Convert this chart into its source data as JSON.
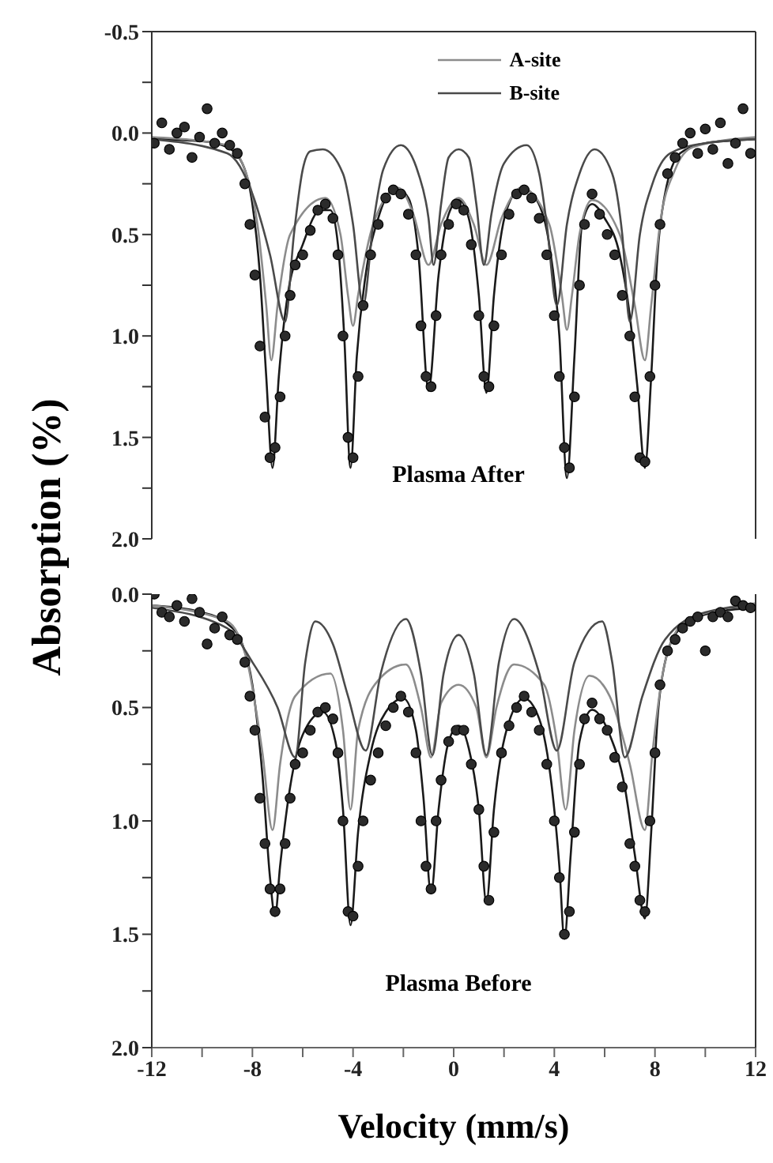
{
  "chart_data": [
    {
      "type": "scatter",
      "ylabel": "Absorption (%)",
      "annotations": [
        "Plasma After"
      ],
      "xlim": [
        -12,
        12
      ],
      "ylim": [
        2.0,
        -0.5
      ],
      "yticks": [
        {
          "value": -0.5,
          "label": "-0.5"
        },
        {
          "value": -0.25,
          "label": null
        },
        {
          "value": 0,
          "label": "0.0"
        },
        {
          "value": 0.25,
          "label": null
        },
        {
          "value": 0.5,
          "label": "0.5"
        },
        {
          "value": 0.75,
          "label": null
        },
        {
          "value": 1,
          "label": "1.0"
        },
        {
          "value": 1.25,
          "label": null
        },
        {
          "value": 1.5,
          "label": "1.5"
        },
        {
          "value": 1.75,
          "label": null
        },
        {
          "value": 2,
          "label": "2.0"
        }
      ],
      "tick_labels": "y",
      "legend": "top",
      "series": [
        {
          "type": "scatter",
          "marker": "circle",
          "color": "#2b2b2b",
          "x": [
            -11.9,
            -11.6,
            -11.3,
            -11.0,
            -10.7,
            -10.4,
            -10.1,
            -9.8,
            -9.5,
            -9.2,
            -8.9,
            -8.6,
            -8.3,
            -8.1,
            -7.9,
            -7.7,
            -7.5,
            -7.3,
            -7.1,
            -6.9,
            -6.7,
            -6.5,
            -6.3,
            -6.0,
            -5.7,
            -5.4,
            -5.1,
            -4.8,
            -4.6,
            -4.4,
            -4.2,
            -4.0,
            -3.8,
            -3.6,
            -3.3,
            -3.0,
            -2.7,
            -2.4,
            -2.1,
            -1.8,
            -1.5,
            -1.3,
            -1.1,
            -0.9,
            -0.7,
            -0.5,
            -0.2,
            0.1,
            0.4,
            0.7,
            1.0,
            1.2,
            1.4,
            1.6,
            1.9,
            2.2,
            2.5,
            2.8,
            3.1,
            3.4,
            3.7,
            4.0,
            4.2,
            4.4,
            4.6,
            4.8,
            5.0,
            5.2,
            5.5,
            5.8,
            6.1,
            6.4,
            6.7,
            7.0,
            7.2,
            7.4,
            7.6,
            7.8,
            8.0,
            8.2,
            8.5,
            8.8,
            9.1,
            9.4,
            9.7,
            10.0,
            10.3,
            10.6,
            10.9,
            11.2,
            11.5,
            11.8
          ],
          "values": [
            0.05,
            -0.05,
            0.08,
            0.0,
            -0.03,
            0.12,
            0.02,
            -0.12,
            0.05,
            0.0,
            0.06,
            0.1,
            0.25,
            0.45,
            0.7,
            1.05,
            1.4,
            1.6,
            1.55,
            1.3,
            1.0,
            0.8,
            0.65,
            0.6,
            0.48,
            0.38,
            0.35,
            0.42,
            0.6,
            1.0,
            1.5,
            1.6,
            1.2,
            0.85,
            0.6,
            0.45,
            0.32,
            0.28,
            0.3,
            0.4,
            0.6,
            0.95,
            1.2,
            1.25,
            0.9,
            0.6,
            0.45,
            0.35,
            0.38,
            0.55,
            0.9,
            1.2,
            1.25,
            0.95,
            0.6,
            0.4,
            0.3,
            0.28,
            0.32,
            0.42,
            0.6,
            0.9,
            1.2,
            1.55,
            1.65,
            1.3,
            0.75,
            0.45,
            0.3,
            0.4,
            0.5,
            0.6,
            0.8,
            1.0,
            1.3,
            1.6,
            1.62,
            1.2,
            0.75,
            0.45,
            0.2,
            0.12,
            0.05,
            0.0,
            0.1,
            -0.02,
            0.08,
            -0.05,
            0.15,
            0.05,
            -0.12,
            0.1
          ]
        },
        {
          "type": "line",
          "color": "#1a1a1a",
          "x": [
            -12,
            -10,
            -9,
            -8.4,
            -8.0,
            -7.7,
            -7.45,
            -7.2,
            -6.95,
            -6.6,
            -6.0,
            -5.3,
            -4.9,
            -4.6,
            -4.35,
            -4.1,
            -3.85,
            -3.5,
            -3.0,
            -2.3,
            -1.8,
            -1.4,
            -1.0,
            -0.6,
            -0.2,
            0.2,
            0.6,
            1.0,
            1.3,
            1.6,
            2.1,
            2.7,
            3.3,
            3.8,
            4.2,
            4.5,
            4.8,
            5.1,
            5.5,
            6.0,
            6.6,
            7.0,
            7.3,
            7.6,
            7.85,
            8.1,
            8.4,
            9.0,
            10,
            12
          ],
          "values": [
            0.03,
            0.04,
            0.07,
            0.15,
            0.35,
            0.7,
            1.2,
            1.65,
            1.2,
            0.8,
            0.55,
            0.38,
            0.38,
            0.55,
            1.0,
            1.65,
            1.1,
            0.7,
            0.42,
            0.27,
            0.32,
            0.6,
            1.27,
            0.7,
            0.4,
            0.33,
            0.42,
            0.8,
            1.28,
            0.8,
            0.38,
            0.27,
            0.33,
            0.55,
            1.0,
            1.7,
            1.1,
            0.45,
            0.35,
            0.42,
            0.6,
            0.9,
            1.25,
            1.65,
            1.2,
            0.6,
            0.3,
            0.1,
            0.05,
            0.03
          ]
        },
        {
          "type": "line",
          "name": "A-site",
          "color": "#8c8c8c",
          "x": [
            -12,
            -9,
            -8.3,
            -7.8,
            -7.45,
            -7.25,
            -7.0,
            -6.5,
            -5.1,
            -4.5,
            -4.2,
            -4.0,
            -3.8,
            -3.2,
            -2.2,
            -1.6,
            -1.0,
            -0.5,
            0.2,
            0.8,
            1.3,
            1.9,
            2.7,
            3.8,
            4.3,
            4.5,
            4.7,
            5.0,
            5.5,
            6.6,
            7.2,
            7.6,
            7.85,
            8.2,
            8.8,
            9.5,
            12
          ],
          "values": [
            0.02,
            0.06,
            0.18,
            0.45,
            0.85,
            1.12,
            0.85,
            0.5,
            0.32,
            0.5,
            0.8,
            0.95,
            0.8,
            0.45,
            0.27,
            0.4,
            0.65,
            0.45,
            0.32,
            0.45,
            0.65,
            0.42,
            0.27,
            0.45,
            0.8,
            0.97,
            0.8,
            0.5,
            0.33,
            0.5,
            0.85,
            1.12,
            0.85,
            0.45,
            0.18,
            0.07,
            0.02
          ]
        },
        {
          "type": "line",
          "name": "B-site",
          "color": "#4a4a4a",
          "x": [
            -12,
            -9,
            -8.0,
            -7.3,
            -6.7,
            -6.35,
            -6.0,
            -5.7,
            -5.2,
            -4.4,
            -4.0,
            -3.6,
            -3.2,
            -2.8,
            -2.1,
            -1.4,
            -1.0,
            -0.8,
            -0.5,
            -0.2,
            0.2,
            0.6,
            0.9,
            1.2,
            1.5,
            2.0,
            2.9,
            3.4,
            3.7,
            4.1,
            4.5,
            5.0,
            5.6,
            6.3,
            6.7,
            7.0,
            7.4,
            7.9,
            8.6,
            10,
            12
          ],
          "values": [
            0.03,
            0.1,
            0.3,
            0.6,
            0.93,
            0.5,
            0.18,
            0.09,
            0.08,
            0.2,
            0.45,
            0.85,
            0.45,
            0.18,
            0.06,
            0.2,
            0.42,
            0.65,
            0.35,
            0.12,
            0.08,
            0.12,
            0.35,
            0.65,
            0.4,
            0.15,
            0.06,
            0.2,
            0.45,
            0.85,
            0.45,
            0.2,
            0.08,
            0.2,
            0.5,
            0.93,
            0.5,
            0.25,
            0.1,
            0.05,
            0.03
          ]
        }
      ]
    },
    {
      "type": "scatter",
      "xlabel": "Velocity (mm/s)",
      "annotations": [
        "Plasma Before"
      ],
      "xlim": [
        -12,
        12
      ],
      "xticks": [
        -12,
        {
          "value": -10,
          "label": null
        },
        -8,
        {
          "value": -6,
          "label": null
        },
        -4,
        {
          "value": -2,
          "label": null
        },
        0,
        {
          "value": 2,
          "label": null
        },
        4,
        {
          "value": 6,
          "label": null
        },
        8,
        {
          "value": 10,
          "label": null
        },
        12
      ],
      "ylim": [
        2.0,
        0.0
      ],
      "yticks": [
        {
          "value": 0,
          "label": "0.0"
        },
        {
          "value": 0.25,
          "label": null
        },
        {
          "value": 0.5,
          "label": "0.5"
        },
        {
          "value": 0.75,
          "label": null
        },
        {
          "value": 1,
          "label": "1.0"
        },
        {
          "value": 1.25,
          "label": null
        },
        {
          "value": 1.5,
          "label": "1.5"
        },
        {
          "value": 1.75,
          "label": null
        },
        {
          "value": 2,
          "label": "2.0"
        }
      ],
      "series": [
        {
          "type": "scatter",
          "marker": "circle",
          "color": "#2b2b2b",
          "x": [
            -11.9,
            -11.6,
            -11.3,
            -11.0,
            -10.7,
            -10.4,
            -10.1,
            -9.8,
            -9.5,
            -9.2,
            -8.9,
            -8.6,
            -8.3,
            -8.1,
            -7.9,
            -7.7,
            -7.5,
            -7.3,
            -7.1,
            -6.9,
            -6.7,
            -6.5,
            -6.3,
            -6.0,
            -5.7,
            -5.4,
            -5.1,
            -4.8,
            -4.6,
            -4.4,
            -4.2,
            -4.0,
            -3.8,
            -3.6,
            -3.3,
            -3.0,
            -2.7,
            -2.4,
            -2.1,
            -1.8,
            -1.5,
            -1.3,
            -1.1,
            -0.9,
            -0.7,
            -0.5,
            -0.2,
            0.1,
            0.4,
            0.7,
            1.0,
            1.2,
            1.4,
            1.6,
            1.9,
            2.2,
            2.5,
            2.8,
            3.1,
            3.4,
            3.7,
            4.0,
            4.2,
            4.4,
            4.6,
            4.8,
            5.0,
            5.2,
            5.5,
            5.8,
            6.1,
            6.4,
            6.7,
            7.0,
            7.2,
            7.4,
            7.6,
            7.8,
            8.0,
            8.2,
            8.5,
            8.8,
            9.1,
            9.4,
            9.7,
            10.0,
            10.3,
            10.6,
            10.9,
            11.2,
            11.5,
            11.8
          ],
          "values": [
            0.0,
            0.08,
            0.1,
            0.05,
            0.12,
            0.02,
            0.08,
            0.22,
            0.15,
            0.1,
            0.18,
            0.2,
            0.3,
            0.45,
            0.6,
            0.9,
            1.1,
            1.3,
            1.4,
            1.3,
            1.1,
            0.9,
            0.75,
            0.7,
            0.6,
            0.52,
            0.5,
            0.55,
            0.7,
            1.0,
            1.4,
            1.42,
            1.2,
            1.0,
            0.82,
            0.7,
            0.58,
            0.5,
            0.45,
            0.52,
            0.7,
            1.0,
            1.2,
            1.3,
            1.0,
            0.82,
            0.65,
            0.6,
            0.6,
            0.75,
            0.95,
            1.2,
            1.35,
            1.05,
            0.7,
            0.58,
            0.5,
            0.45,
            0.52,
            0.6,
            0.75,
            1.0,
            1.25,
            1.5,
            1.4,
            1.05,
            0.75,
            0.55,
            0.48,
            0.55,
            0.6,
            0.72,
            0.85,
            1.1,
            1.2,
            1.35,
            1.4,
            1.0,
            0.7,
            0.4,
            0.25,
            0.2,
            0.15,
            0.12,
            0.1,
            0.25,
            0.1,
            0.08,
            0.1,
            0.03,
            0.05,
            0.06
          ]
        },
        {
          "type": "line",
          "color": "#1a1a1a",
          "x": [
            -12,
            -10,
            -9,
            -8.4,
            -8.0,
            -7.6,
            -7.3,
            -7.1,
            -6.9,
            -6.5,
            -6.0,
            -5.2,
            -4.7,
            -4.4,
            -4.1,
            -3.8,
            -3.3,
            -2.7,
            -2.0,
            -1.5,
            -1.2,
            -0.9,
            -0.6,
            -0.2,
            0.2,
            0.6,
            1.0,
            1.3,
            1.6,
            2.1,
            2.8,
            3.4,
            3.9,
            4.2,
            4.4,
            4.65,
            5.0,
            5.5,
            6.2,
            6.8,
            7.2,
            7.6,
            7.85,
            8.1,
            8.4,
            9.0,
            10,
            12
          ],
          "values": [
            0.05,
            0.08,
            0.13,
            0.22,
            0.4,
            0.8,
            1.25,
            1.42,
            1.2,
            0.85,
            0.62,
            0.52,
            0.65,
            0.95,
            1.46,
            1.05,
            0.7,
            0.52,
            0.46,
            0.6,
            0.9,
            1.32,
            0.95,
            0.65,
            0.58,
            0.68,
            0.95,
            1.36,
            0.95,
            0.6,
            0.46,
            0.55,
            0.85,
            1.2,
            1.52,
            1.15,
            0.65,
            0.51,
            0.62,
            0.85,
            1.15,
            1.43,
            1.05,
            0.55,
            0.3,
            0.15,
            0.09,
            0.06
          ]
        },
        {
          "type": "line",
          "color": "#8c8c8c",
          "x": [
            -12,
            -9,
            -8.2,
            -7.6,
            -7.2,
            -6.9,
            -6.3,
            -4.9,
            -4.4,
            -4.1,
            -3.8,
            -3.0,
            -1.9,
            -1.3,
            -0.9,
            -0.5,
            0.2,
            0.9,
            1.3,
            1.7,
            2.4,
            3.6,
            4.1,
            4.45,
            4.8,
            5.4,
            6.2,
            7.0,
            7.6,
            7.9,
            8.4,
            9.2,
            12
          ],
          "values": [
            0.05,
            0.12,
            0.3,
            0.7,
            1.04,
            0.75,
            0.45,
            0.35,
            0.6,
            0.95,
            0.6,
            0.38,
            0.31,
            0.5,
            0.72,
            0.48,
            0.4,
            0.5,
            0.72,
            0.5,
            0.31,
            0.4,
            0.65,
            0.95,
            0.6,
            0.36,
            0.45,
            0.75,
            1.04,
            0.7,
            0.3,
            0.12,
            0.04
          ]
        },
        {
          "type": "line",
          "color": "#4a4a4a",
          "x": [
            -12,
            -9,
            -8.0,
            -7.0,
            -6.3,
            -5.9,
            -5.5,
            -4.8,
            -4.2,
            -3.5,
            -2.9,
            -1.9,
            -1.3,
            -0.85,
            -0.4,
            0.2,
            0.8,
            1.3,
            1.8,
            2.4,
            3.4,
            4.1,
            4.8,
            5.9,
            6.3,
            6.8,
            7.5,
            8.4,
            10,
            12
          ],
          "values": [
            0.06,
            0.15,
            0.3,
            0.5,
            0.72,
            0.3,
            0.12,
            0.22,
            0.45,
            0.69,
            0.35,
            0.11,
            0.35,
            0.71,
            0.35,
            0.18,
            0.35,
            0.71,
            0.3,
            0.11,
            0.35,
            0.69,
            0.3,
            0.12,
            0.3,
            0.72,
            0.45,
            0.2,
            0.08,
            0.05
          ]
        }
      ]
    }
  ]
}
